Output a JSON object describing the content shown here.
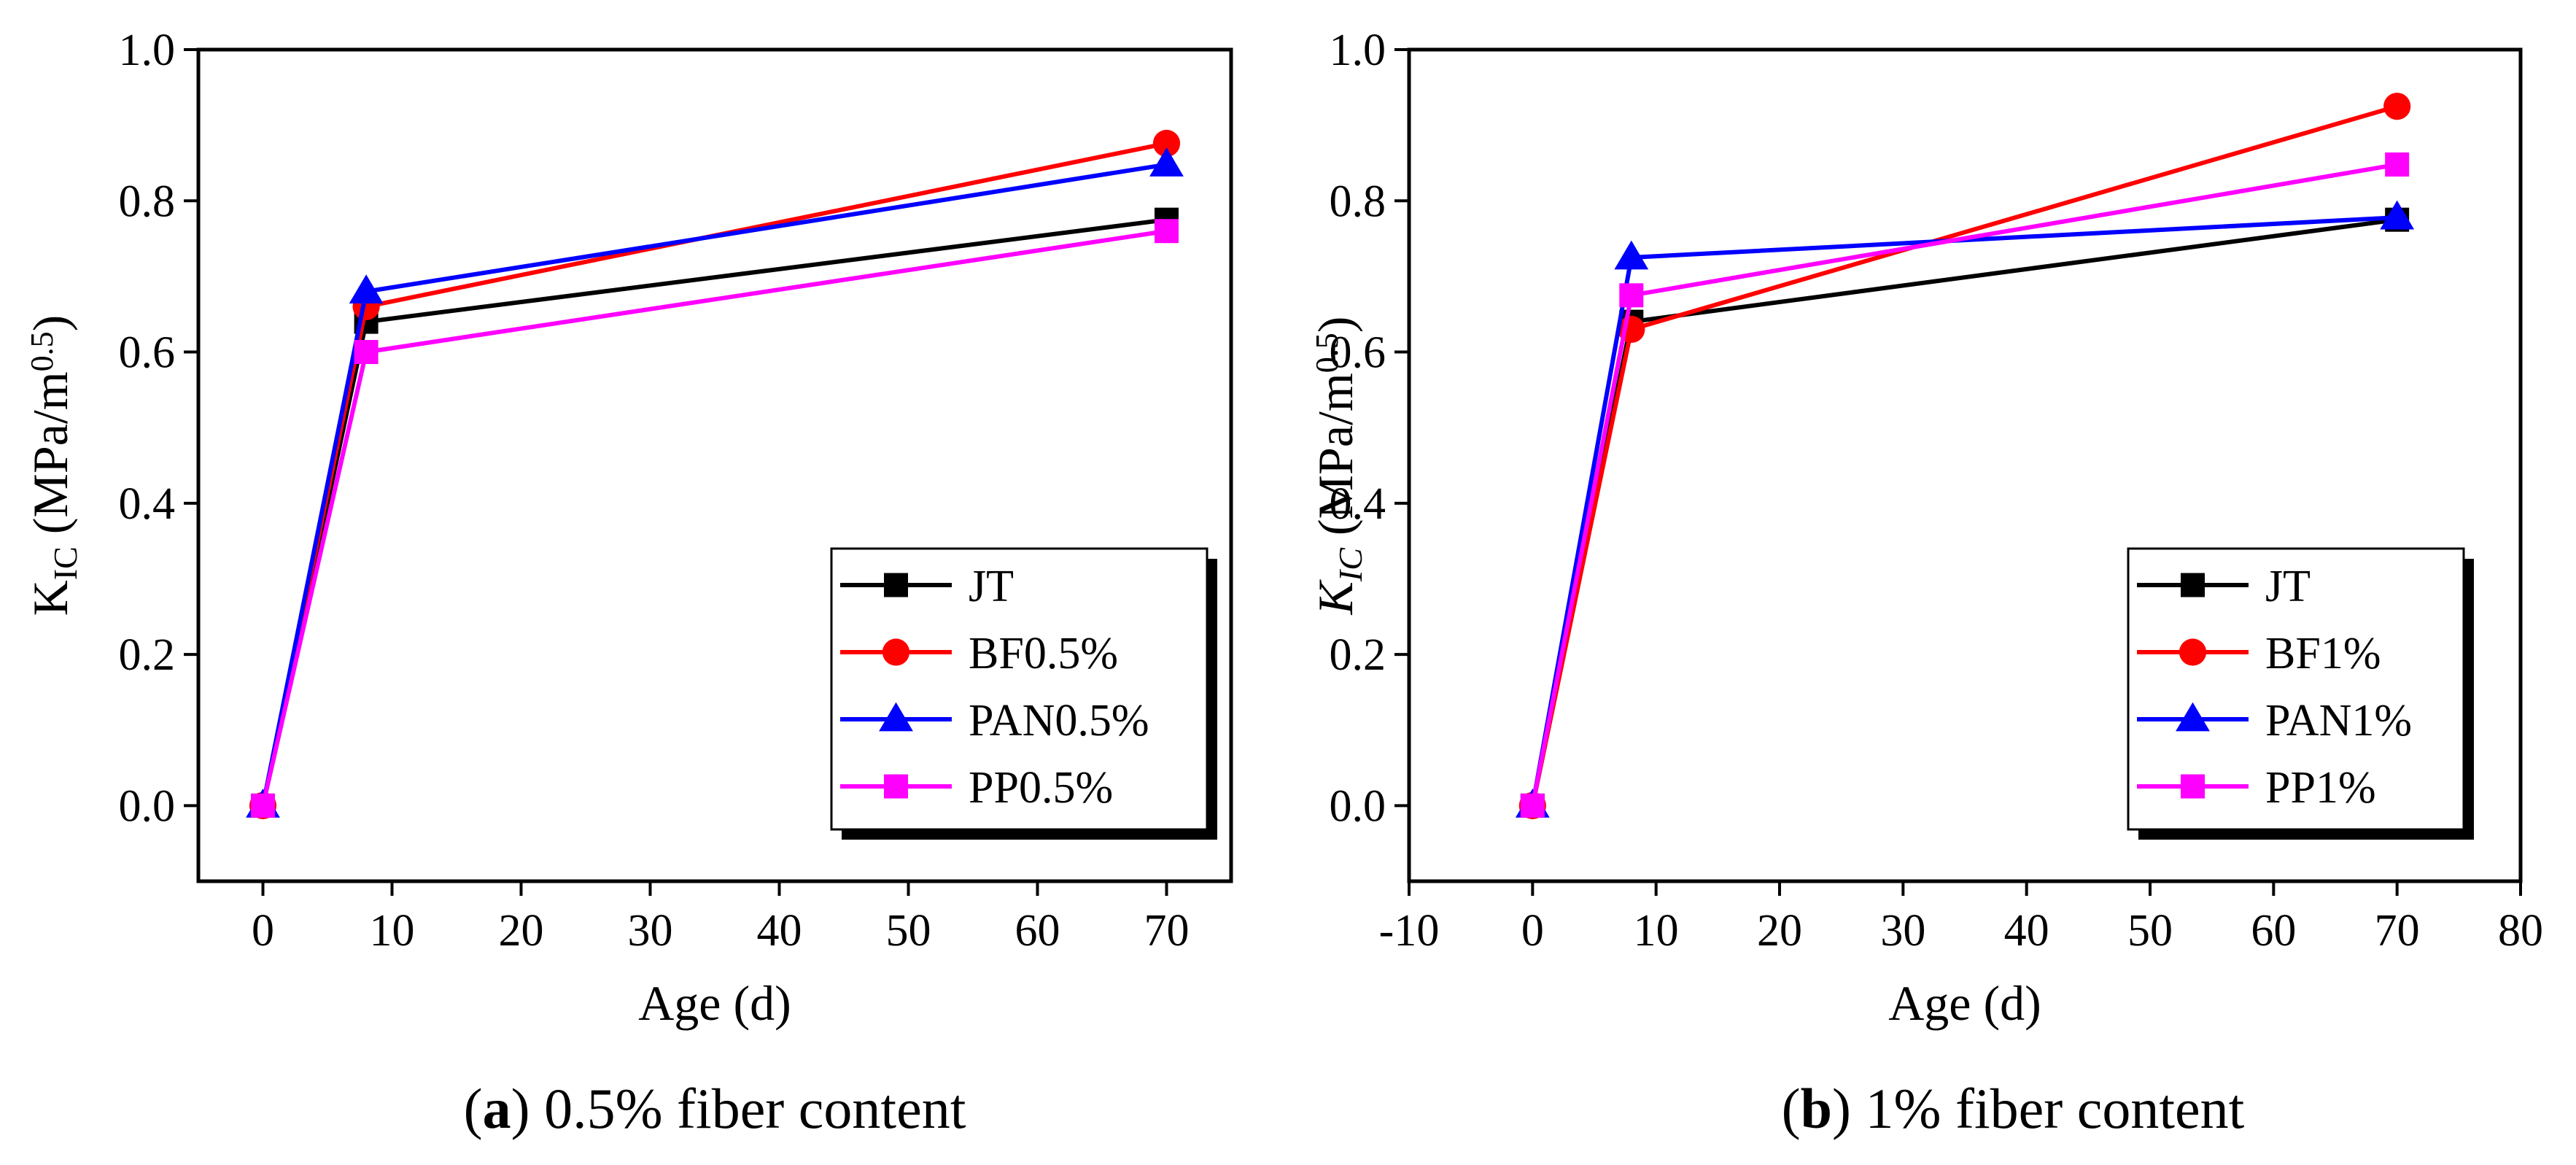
{
  "chart_data": [
    {
      "type": "line",
      "id": "a",
      "caption_letter": "a",
      "caption_text": "0.5% fiber content",
      "xlabel": "Age (d)",
      "ylabel": {
        "main": "K",
        "sub": "IC",
        "rest": " (MPa/m",
        "sup": "0.5",
        "close": ")",
        "italic": false
      },
      "xlim": [
        -5,
        75
      ],
      "ylim": [
        -0.1,
        1.0
      ],
      "xticks": [
        0,
        10,
        20,
        30,
        40,
        50,
        60,
        70
      ],
      "xtick_labels": [
        "0",
        "10",
        "20",
        "30",
        "40",
        "50",
        "60",
        "70"
      ],
      "yticks": [
        0.0,
        0.2,
        0.4,
        0.6,
        0.8,
        1.0
      ],
      "ytick_labels": [
        "0.0",
        "0.2",
        "0.4",
        "0.6",
        "0.8",
        "1.0"
      ],
      "grid": false,
      "legend_position": "bottom-right",
      "series": [
        {
          "name": "JT",
          "color": "#000000",
          "marker": "square",
          "x": [
            0,
            8,
            70
          ],
          "y": [
            0.0,
            0.64,
            0.775
          ]
        },
        {
          "name": "BF0.5%",
          "color": "#ff0000",
          "marker": "circle",
          "x": [
            0,
            8,
            70
          ],
          "y": [
            0.0,
            0.66,
            0.876
          ]
        },
        {
          "name": "PAN0.5%",
          "color": "#0000ff",
          "marker": "triangle",
          "x": [
            0,
            8,
            70
          ],
          "y": [
            0.0,
            0.68,
            0.848
          ]
        },
        {
          "name": "PP0.5%",
          "color": "#ff00ff",
          "marker": "square",
          "x": [
            0,
            8,
            70
          ],
          "y": [
            0.0,
            0.6,
            0.76
          ]
        }
      ]
    },
    {
      "type": "line",
      "id": "b",
      "caption_letter": "b",
      "caption_text": "1% fiber content",
      "xlabel": "Age (d)",
      "ylabel": {
        "main": "K",
        "sub": "IC",
        "rest": " (MPa/m",
        "sup": "0.5",
        "close": ")",
        "italic": true
      },
      "xlim": [
        -10,
        80
      ],
      "ylim": [
        -0.1,
        1.0
      ],
      "xticks": [
        -10,
        0,
        10,
        20,
        30,
        40,
        50,
        60,
        70,
        80
      ],
      "xtick_labels": [
        "-10",
        "0",
        "10",
        "20",
        "30",
        "40",
        "50",
        "60",
        "70",
        "80"
      ],
      "yticks": [
        0.0,
        0.2,
        0.4,
        0.6,
        0.8,
        1.0
      ],
      "ytick_labels": [
        "0.0",
        "0.2",
        "0.4",
        "0.6",
        "0.8",
        "1.0"
      ],
      "grid": false,
      "legend_position": "bottom-right",
      "series": [
        {
          "name": "JT",
          "color": "#000000",
          "marker": "square",
          "x": [
            0,
            8,
            70
          ],
          "y": [
            0.0,
            0.64,
            0.775
          ]
        },
        {
          "name": "BF1%",
          "color": "#ff0000",
          "marker": "circle",
          "x": [
            0,
            8,
            70
          ],
          "y": [
            0.0,
            0.63,
            0.925
          ]
        },
        {
          "name": "PAN1%",
          "color": "#0000ff",
          "marker": "triangle",
          "x": [
            0,
            8,
            70
          ],
          "y": [
            0.0,
            0.725,
            0.778
          ]
        },
        {
          "name": "PP1%",
          "color": "#ff00ff",
          "marker": "square",
          "x": [
            0,
            8,
            70
          ],
          "y": [
            0.0,
            0.675,
            0.848
          ]
        }
      ]
    }
  ]
}
